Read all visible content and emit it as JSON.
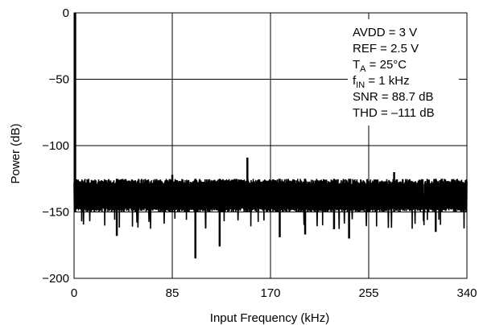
{
  "chart_data": {
    "type": "line",
    "xlabel": "Input Frequency (kHz)",
    "ylabel": "Power (dB)",
    "xlim": [
      0,
      340
    ],
    "ylim": [
      -200,
      0
    ],
    "x_ticks": [
      "0",
      "85",
      "170",
      "255",
      "340"
    ],
    "y_ticks": [
      "0",
      "−50",
      "−100",
      "−150",
      "−200"
    ],
    "grid": true,
    "annotations": {
      "avdd": "AVDD = 3 V",
      "ref": "REF = 2.5 V",
      "ta_main": "T",
      "ta_sub": "A",
      "ta_rest": " = 25°C",
      "fin_main": "f",
      "fin_sub": "IN",
      "fin_rest": " = 1 kHz",
      "snr": "SNR = 88.7 dB",
      "thd": "THD = –111 dB"
    },
    "series": [
      {
        "values_note": "FFT spectrum: noise floor approx -150 to -125 dB across 0-340 kHz",
        "fundamental": {
          "x": 1,
          "y": 0
        },
        "noise_floor_low": -150,
        "noise_floor_high": -125,
        "spurs": [
          {
            "x": 85,
            "y": -122
          },
          {
            "x": 150,
            "y": -109
          },
          {
            "x": 277,
            "y": -120
          },
          {
            "x": 105,
            "y": -185
          },
          {
            "x": 126,
            "y": -176
          },
          {
            "x": 37,
            "y": -168
          },
          {
            "x": 178,
            "y": -169
          },
          {
            "x": 200,
            "y": -167
          },
          {
            "x": 225,
            "y": -163
          },
          {
            "x": 238,
            "y": -170
          },
          {
            "x": 313,
            "y": -165
          }
        ]
      }
    ]
  }
}
